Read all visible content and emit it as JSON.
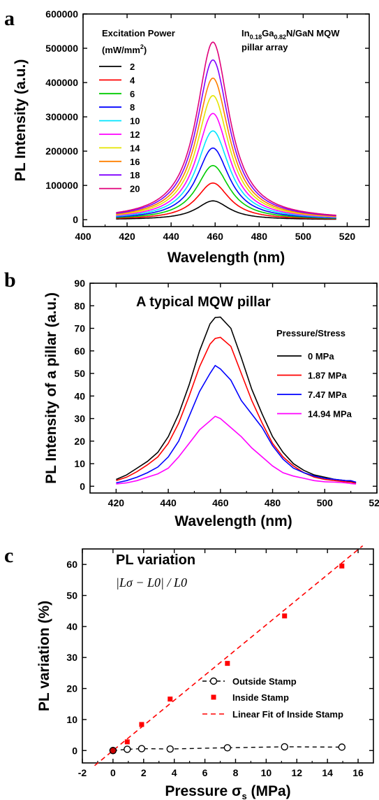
{
  "chart_data": [
    {
      "panel_label": "a",
      "type": "line",
      "xlabel": "Wavelength (nm)",
      "ylabel": "PL Intensity (a.u.)",
      "xlim": [
        400,
        530
      ],
      "ylim": [
        -20000,
        600000
      ],
      "xticks": [
        400,
        420,
        440,
        460,
        480,
        500,
        520
      ],
      "yticks": [
        0,
        100000,
        200000,
        300000,
        400000,
        500000,
        600000
      ],
      "legend_title": "Excitation Power",
      "legend_unit_prefix": "(mW/mm",
      "legend_unit_sup": "2",
      "legend_unit_suffix": ")",
      "annotation": {
        "line1_parts": [
          {
            "t": "In",
            "sub": false
          },
          {
            "t": "0.18",
            "sub": true
          },
          {
            "t": "Ga",
            "sub": false
          },
          {
            "t": "0.82",
            "sub": true
          },
          {
            "t": "N/GaN MQW",
            "sub": false
          }
        ],
        "line2": "pillar array"
      },
      "curve_model": {
        "center": 459,
        "half_width": 9,
        "x_start": 415,
        "x_end": 515
      },
      "series": [
        {
          "name": "2",
          "color": "#000000",
          "peak": 55000
        },
        {
          "name": "4",
          "color": "#ff0000",
          "peak": 107000
        },
        {
          "name": "6",
          "color": "#00cc00",
          "peak": 158000
        },
        {
          "name": "8",
          "color": "#0000ff",
          "peak": 209000
        },
        {
          "name": "10",
          "color": "#00e5ff",
          "peak": 259000
        },
        {
          "name": "12",
          "color": "#ff00ff",
          "peak": 310000
        },
        {
          "name": "14",
          "color": "#e5e500",
          "peak": 362000
        },
        {
          "name": "16",
          "color": "#ff8000",
          "peak": 413000
        },
        {
          "name": "18",
          "color": "#8000ff",
          "peak": 466000
        },
        {
          "name": "20",
          "color": "#e0007a",
          "peak": 518000
        }
      ]
    },
    {
      "panel_label": "b",
      "type": "line",
      "title": "A typical MQW pillar",
      "xlabel": "Wavelength (nm)",
      "ylabel": "PL Intensity of a pillar (a.u.)",
      "xlim": [
        410,
        520
      ],
      "ylim": [
        -3,
        90
      ],
      "xticks": [
        420,
        440,
        460,
        480,
        500,
        520
      ],
      "yticks": [
        0,
        10,
        20,
        30,
        40,
        50,
        60,
        70,
        80,
        90
      ],
      "legend_title": "Pressure/Stress",
      "x": [
        420,
        424,
        428,
        432,
        436,
        440,
        444,
        448,
        452,
        456,
        458,
        460,
        464,
        468,
        472,
        476,
        480,
        484,
        488,
        492,
        496,
        500,
        504,
        508,
        510,
        512
      ],
      "series": [
        {
          "name": "0 MPa",
          "color": "#000000",
          "values": [
            3,
            5,
            8,
            11,
            15,
            22,
            32,
            45,
            60,
            72,
            74.8,
            75,
            70,
            57,
            43,
            32,
            22,
            15,
            10,
            7,
            5,
            4,
            3,
            2.5,
            2,
            1.5
          ]
        },
        {
          "name": "1.87 MPa",
          "color": "#ff0000",
          "values": [
            2.5,
            4,
            6.5,
            9.5,
            13,
            19,
            28,
            40,
            53,
            63,
            65.5,
            66,
            62,
            50,
            38,
            28,
            19,
            13,
            9,
            6,
            4,
            3,
            2.5,
            2,
            1.8,
            1.3
          ]
        },
        {
          "name": "7.47 MPa",
          "color": "#0000ff",
          "values": [
            1.5,
            2.5,
            4,
            6,
            8.5,
            13,
            20,
            31,
            42,
            50,
            53.5,
            52,
            47,
            38,
            32,
            26,
            18,
            12,
            8,
            6,
            4.5,
            3.5,
            3,
            2.5,
            2.5,
            1.8
          ]
        },
        {
          "name": "14.94 MPa",
          "color": "#ff00ff",
          "values": [
            1,
            1.5,
            2.5,
            4,
            5.5,
            8,
            13,
            19,
            25,
            29,
            31,
            30,
            26,
            22,
            17,
            13,
            9,
            6,
            4.5,
            3.5,
            2.5,
            2,
            1.8,
            1.5,
            1.2,
            1
          ]
        }
      ]
    },
    {
      "panel_label": "c",
      "type": "scatter",
      "title": "PL variation",
      "formula_note": "|Lσ − L0| / L0",
      "xlabel_text": "Pressure  σ",
      "xlabel_sub": "s",
      "xlabel_unit": " (MPa)",
      "ylabel": "PL variation (%)",
      "xlim": [
        -2,
        17
      ],
      "ylim": [
        -4,
        65
      ],
      "xticks": [
        -2,
        0,
        2,
        4,
        6,
        8,
        10,
        12,
        14,
        16
      ],
      "yticks": [
        0,
        10,
        20,
        30,
        40,
        50,
        60
      ],
      "series": [
        {
          "name": "Outside Stamp",
          "color": "#000000",
          "marker": "open-circle",
          "dashed_line": true,
          "x": [
            0,
            0.93,
            1.87,
            3.73,
            7.47,
            11.2,
            14.94
          ],
          "y": [
            0,
            0.4,
            0.6,
            0.5,
            0.9,
            1.2,
            1.1
          ]
        },
        {
          "name": "Inside Stamp",
          "color": "#ff0000",
          "marker": "square",
          "x": [
            0,
            0.93,
            1.87,
            3.73,
            7.47,
            11.2,
            14.94
          ],
          "y": [
            0,
            2.8,
            8.4,
            16.6,
            28.1,
            43.4,
            59.5
          ]
        },
        {
          "name": "Linear Fit of Inside Stamp",
          "color": "#ff0000",
          "marker": "none",
          "dashed_line": true,
          "fit": {
            "slope": 4.05,
            "intercept": 0
          }
        }
      ]
    }
  ]
}
